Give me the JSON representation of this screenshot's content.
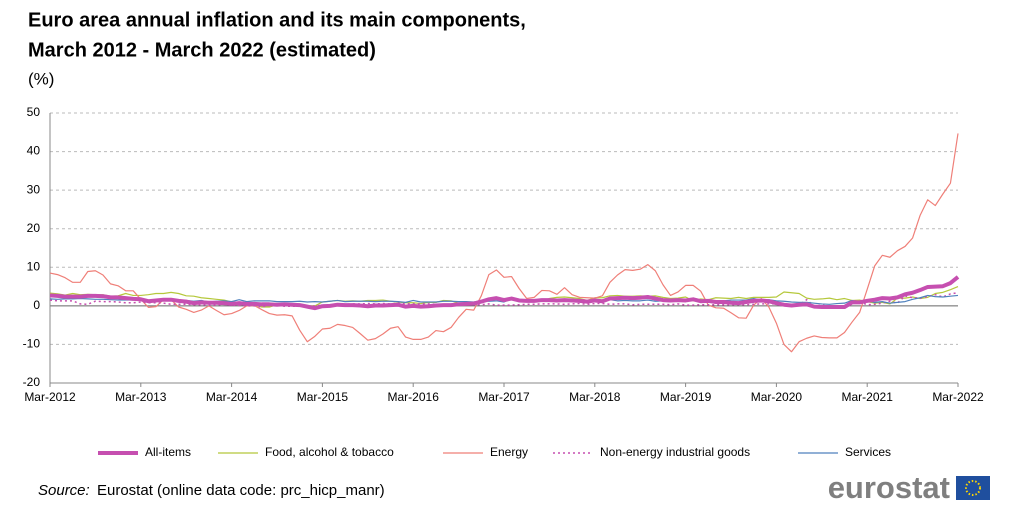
{
  "chart_data": {
    "type": "line",
    "title": [
      "Euro area annual inflation and its main components,",
      "March 2012 - March 2022 (estimated)"
    ],
    "unit": "(%)",
    "categories": [
      "Mar-2012",
      null,
      null,
      null,
      null,
      null,
      null,
      null,
      null,
      null,
      null,
      null,
      "Mar-2013",
      null,
      null,
      null,
      null,
      null,
      null,
      null,
      null,
      null,
      null,
      null,
      "Mar-2014",
      null,
      null,
      null,
      null,
      null,
      null,
      null,
      null,
      null,
      null,
      null,
      "Mar-2015",
      null,
      null,
      null,
      null,
      null,
      null,
      null,
      null,
      null,
      null,
      null,
      "Mar-2016",
      null,
      null,
      null,
      null,
      null,
      null,
      null,
      null,
      null,
      null,
      null,
      "Mar-2017",
      null,
      null,
      null,
      null,
      null,
      null,
      null,
      null,
      null,
      null,
      null,
      "Mar-2018",
      null,
      null,
      null,
      null,
      null,
      null,
      null,
      null,
      null,
      null,
      null,
      "Mar-2019",
      null,
      null,
      null,
      null,
      null,
      null,
      null,
      null,
      null,
      null,
      null,
      "Mar-2020",
      null,
      null,
      null,
      null,
      null,
      null,
      null,
      null,
      null,
      null,
      null,
      "Mar-2021",
      null,
      null,
      null,
      null,
      null,
      null,
      null,
      null,
      null,
      null,
      null,
      "Mar-2022"
    ],
    "ylim": [
      -20,
      50
    ],
    "yticks": [
      -20,
      -10,
      0,
      10,
      20,
      30,
      40,
      50
    ],
    "grid": true,
    "series": [
      {
        "name": "All-items",
        "color": "#c64fb0",
        "width": 4,
        "style": "solid",
        "values": [
          2.7,
          2.6,
          2.4,
          2.4,
          2.4,
          2.6,
          2.6,
          2.5,
          2.2,
          2.2,
          2.0,
          1.8,
          1.7,
          1.2,
          1.4,
          1.6,
          1.6,
          1.3,
          1.1,
          0.7,
          0.9,
          0.8,
          0.8,
          0.7,
          0.5,
          0.7,
          0.5,
          0.5,
          0.4,
          0.4,
          0.3,
          0.4,
          0.3,
          0.2,
          -0.2,
          -0.6,
          -0.1,
          0,
          0.3,
          0.2,
          0.2,
          0.1,
          -0.1,
          0.1,
          0.1,
          0.2,
          0.3,
          -0.2,
          0,
          -0.2,
          -0.1,
          0.1,
          0.2,
          0.2,
          0.4,
          0.5,
          0.6,
          1.1,
          1.7,
          2.0,
          1.5,
          1.9,
          1.4,
          1.3,
          1.3,
          1.5,
          1.5,
          1.4,
          1.5,
          1.4,
          1.3,
          1.1,
          1.4,
          1.2,
          1.9,
          2.0,
          2.1,
          2.0,
          2.1,
          2.3,
          1.9,
          1.5,
          1.4,
          1.5,
          1.4,
          1.7,
          1.2,
          1.3,
          1.0,
          1.0,
          0.8,
          0.7,
          1.0,
          1.3,
          1.4,
          1.2,
          0.7,
          0.3,
          0.1,
          0.3,
          0.4,
          -0.2,
          -0.3,
          -0.3,
          -0.3,
          -0.3,
          0.9,
          0.9,
          1.3,
          1.6,
          2.0,
          1.9,
          2.2,
          3.0,
          3.4,
          4.1,
          4.9,
          5.0,
          5.1,
          5.9,
          7.5
        ]
      },
      {
        "name": "Food, alcohol & tobacco",
        "color": "#b5c83b",
        "width": 1.2,
        "style": "solid",
        "values": [
          3.3,
          3.1,
          2.8,
          3.2,
          2.9,
          3.0,
          2.9,
          2.9,
          2.5,
          2.6,
          3.2,
          2.7,
          2.7,
          2.9,
          3.2,
          3.2,
          3.5,
          3.2,
          2.6,
          2.5,
          2.1,
          1.9,
          1.7,
          1.5,
          1.0,
          0.7,
          0.1,
          0.3,
          -0.3,
          -0.3,
          0.3,
          0.5,
          0.5,
          0.5,
          0.0,
          0.0,
          1.0,
          1.2,
          1.4,
          1.2,
          1.3,
          1.2,
          1.4,
          1.4,
          1.5,
          1.2,
          1.0,
          0.8,
          0.8,
          0.6,
          0.9,
          0.9,
          1.4,
          1.3,
          0.7,
          0.5,
          0.7,
          1.2,
          1.8,
          1.7,
          1.9,
          1.6,
          1.5,
          1.4,
          1.4,
          1.4,
          1.9,
          2.2,
          2.3,
          2.1,
          1.9,
          1.4,
          2.1,
          2.1,
          2.6,
          2.7,
          2.5,
          2.5,
          2.6,
          2.5,
          2.6,
          2.2,
          1.9,
          2.0,
          2.3,
          1.3,
          1.8,
          1.6,
          2.1,
          2.0,
          1.9,
          2.2,
          1.9,
          2.2,
          2.2,
          2.2,
          2.3,
          3.6,
          3.4,
          3.2,
          2.0,
          1.7,
          1.8,
          2.0,
          1.6,
          1.9,
          1.4,
          1.5,
          1.1,
          0.7,
          0.9,
          0.5,
          2.0,
          2.0,
          2.3,
          1.9,
          2.2,
          3.2,
          3.5,
          4.2,
          5.0
        ]
      },
      {
        "name": "Energy",
        "color": "#ef7f78",
        "width": 1.2,
        "style": "solid",
        "values": [
          8.5,
          8.1,
          7.3,
          6.1,
          6.1,
          8.9,
          9.1,
          8.0,
          5.7,
          5.2,
          3.9,
          3.9,
          1.7,
          -0.4,
          -0.2,
          1.6,
          1.6,
          -0.3,
          -0.9,
          -1.7,
          -1.1,
          0.0,
          -1.2,
          -2.3,
          -2.0,
          -1.2,
          0.0,
          0.1,
          -1.0,
          -2.0,
          -2.4,
          -2.3,
          -2.6,
          -6.3,
          -9.3,
          -7.9,
          -6.0,
          -5.8,
          -4.8,
          -5.1,
          -5.6,
          -7.2,
          -8.9,
          -8.5,
          -7.3,
          -5.8,
          -5.4,
          -8.1,
          -8.7,
          -8.7,
          -8.1,
          -6.4,
          -6.7,
          -5.6,
          -3.0,
          -0.9,
          -1.1,
          2.6,
          8.1,
          9.3,
          7.4,
          7.6,
          4.5,
          1.9,
          2.2,
          4.0,
          3.9,
          3.0,
          4.7,
          2.9,
          2.2,
          2.1,
          2.0,
          2.6,
          6.1,
          8.0,
          9.4,
          9.2,
          9.5,
          10.7,
          9.1,
          5.5,
          2.7,
          3.6,
          5.3,
          5.3,
          3.8,
          0.2,
          -0.5,
          -0.6,
          -1.8,
          -3.1,
          -3.2,
          0.2,
          1.9,
          -0.3,
          -4.5,
          -10.0,
          -11.9,
          -9.3,
          -8.4,
          -7.8,
          -8.2,
          -8.3,
          -8.3,
          -6.9,
          -4.2,
          -1.7,
          4.3,
          10.4,
          13.1,
          12.6,
          14.3,
          15.4,
          17.6,
          23.5,
          27.5,
          26.0,
          29.0,
          31.8,
          44.7
        ]
      },
      {
        "name": "Non-energy industrial goods",
        "color": "#c64fb0",
        "width": 1.5,
        "style": "dotted",
        "values": [
          1.5,
          1.3,
          1.3,
          1.3,
          0.5,
          0.4,
          1.2,
          1.1,
          1.1,
          1.0,
          0.8,
          0.8,
          1.0,
          0.8,
          0.8,
          0.7,
          0.4,
          0.4,
          0.4,
          0.3,
          0.3,
          0.2,
          0.2,
          0.4,
          0.2,
          0.1,
          0.0,
          0.0,
          -0.3,
          0.2,
          0.2,
          -0.1,
          -0.1,
          -0.1,
          -0.1,
          0.0,
          0.2,
          0.2,
          0.2,
          0.4,
          0.5,
          0.5,
          0.6,
          0.5,
          0.6,
          0.5,
          0.7,
          0.5,
          0.5,
          0.5,
          0.5,
          0.4,
          0.4,
          0.4,
          0.3,
          0.3,
          0.3,
          0.3,
          0.5,
          0.2,
          0.2,
          0.2,
          0.3,
          0.4,
          0.4,
          0.5,
          0.5,
          0.5,
          0.4,
          0.5,
          0.6,
          0.4,
          0.6,
          0.6,
          0.4,
          0.5,
          0.5,
          0.3,
          0.4,
          0.4,
          0.4,
          0.4,
          0.3,
          0.5,
          0.2,
          0.2,
          0.3,
          0.3,
          0.3,
          0.3,
          0.3,
          0.3,
          0.3,
          0.4,
          0.5,
          0.5,
          0.5,
          0.4,
          0.2,
          0.2,
          1.6,
          -0.1,
          0.2,
          -0.1,
          -0.3,
          -0.5,
          1.5,
          1.0,
          0.3,
          0.4,
          0.7,
          1.2,
          0.7,
          2.6,
          2.1,
          2.0,
          2.4,
          2.9,
          2.3,
          3.1,
          3.4
        ]
      },
      {
        "name": "Services",
        "color": "#4f81bd",
        "width": 1.2,
        "style": "solid",
        "values": [
          1.8,
          1.7,
          1.8,
          1.8,
          1.9,
          1.8,
          1.7,
          1.7,
          1.6,
          1.5,
          1.5,
          1.5,
          1.8,
          1.1,
          1.5,
          1.6,
          1.4,
          1.4,
          1.4,
          1.2,
          1.4,
          1.0,
          1.2,
          1.3,
          1.1,
          1.6,
          1.1,
          1.3,
          1.3,
          1.3,
          1.1,
          1.1,
          1.1,
          1.2,
          1.0,
          1.1,
          1.0,
          1.2,
          1.4,
          1.1,
          1.2,
          1.2,
          1.2,
          1.1,
          1.2,
          1.2,
          1.1,
          0.9,
          1.4,
          1.0,
          1.0,
          1.0,
          1.2,
          1.2,
          1.1,
          1.1,
          1.0,
          1.3,
          1.2,
          1.3,
          1.0,
          1.8,
          1.3,
          1.6,
          1.6,
          1.6,
          1.6,
          1.2,
          1.2,
          1.3,
          1.2,
          1.3,
          1.5,
          1.0,
          1.6,
          1.3,
          1.4,
          1.3,
          1.3,
          1.5,
          1.2,
          1.3,
          1.3,
          1.4,
          1.3,
          1.9,
          1.0,
          1.6,
          1.3,
          1.3,
          1.5,
          1.5,
          1.5,
          1.9,
          1.5,
          1.6,
          1.3,
          1.2,
          1.0,
          0.9,
          0.9,
          0.7,
          0.5,
          0.4,
          0.6,
          0.7,
          1.4,
          0.9,
          1.3,
          0.9,
          1.1,
          0.7,
          0.9,
          1.1,
          1.7,
          2.1,
          2.7,
          2.4,
          2.3,
          2.5,
          2.7
        ]
      }
    ]
  },
  "source": {
    "label": "Source:",
    "text": "Eurostat (online data code: prc_hicp_manr)"
  },
  "logo": "eurostat"
}
